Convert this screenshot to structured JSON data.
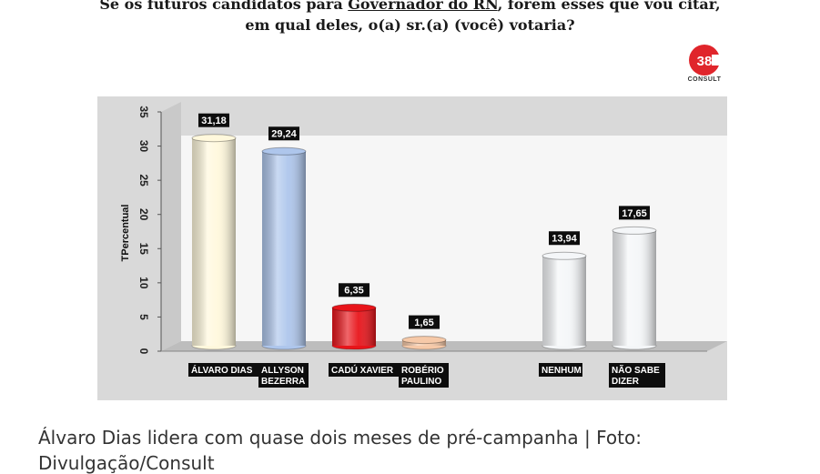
{
  "title_prefix": "Se os futuros candidatos para ",
  "title_underlined": "Governador do RN",
  "title_suffix": ", forem esses que vou citar,",
  "title_line2": "em qual deles, o(a) sr.(a) (você) votaria?",
  "logo": {
    "number": "38",
    "word": "CONSULT"
  },
  "caption_line1": "Álvaro Dias lidera com quase dois meses de pré-campanha | Foto:",
  "caption_line2": "Divulgação/Consult",
  "chart_data": {
    "type": "bar",
    "ylabel": "TPercentual",
    "ylim": [
      0,
      35
    ],
    "yticks": [
      0,
      5,
      10,
      15,
      20,
      25,
      30,
      35
    ],
    "grid": false,
    "series": [
      {
        "points": [
          {
            "label": [
              "ÁLVARO DIAS"
            ],
            "value": 31.18,
            "value_label": "31,18",
            "color": "#fff8dc",
            "slot": 0
          },
          {
            "label": [
              "ALLYSON",
              "BEZERRA"
            ],
            "value": 29.24,
            "value_label": "29,24",
            "color": "#aec6ec",
            "slot": 1
          },
          {
            "label": [
              "CADÚ XAVIER"
            ],
            "value": 6.35,
            "value_label": "6,35",
            "color": "#e8141a",
            "slot": 2
          },
          {
            "label": [
              "ROBÉRIO",
              "PAULINO"
            ],
            "value": 1.65,
            "value_label": "1,65",
            "color": "#f6c9a8",
            "slot": 3
          },
          {
            "label": [
              "NENHUM"
            ],
            "value": 13.94,
            "value_label": "13,94",
            "color": "#f4f6f8",
            "slot": 5
          },
          {
            "label": [
              "NÃO SABE",
              "DIZER"
            ],
            "value": 17.65,
            "value_label": "17,65",
            "color": "#f4f6f8",
            "slot": 6
          }
        ]
      }
    ]
  }
}
